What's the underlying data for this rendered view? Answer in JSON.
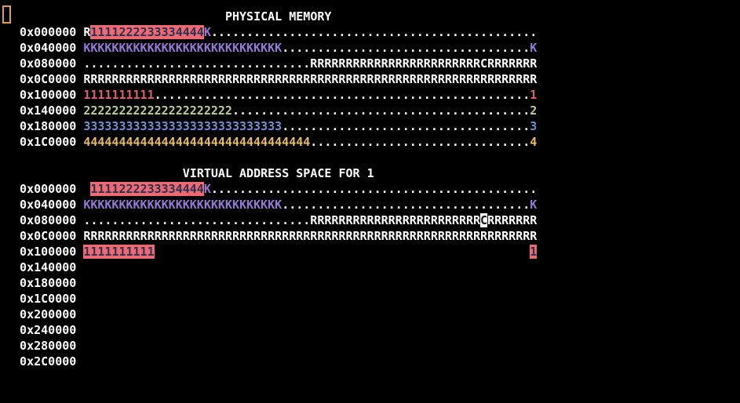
{
  "palette": {
    "background": "#000000",
    "default": "#ffffff",
    "kernel": "#9678d7",
    "proc1": "#e0606a",
    "proc2": "#bacf8c",
    "proc3": "#7092d8",
    "proc4": "#e8bc66",
    "hl_bg": "#ee6971",
    "hl_fg": "#283352",
    "console_bg": "#ffffff",
    "console_fg": "#141420",
    "cursor_border": "#d9a052"
  },
  "cursor": {
    "visible": true
  },
  "sections": [
    {
      "id": "physical-memory",
      "title": "PHYSICAL MEMORY",
      "rows": [
        {
          "addr": "0x000000",
          "segments": [
            {
              "text": "R",
              "fg": "default"
            },
            {
              "text": "1111222233334444",
              "fg": "hl_fg",
              "bg": "hl_bg"
            },
            {
              "text": "K",
              "fg": "kernel"
            },
            {
              "text": "..............................................",
              "fg": "default"
            }
          ]
        },
        {
          "addr": "0x040000",
          "segments": [
            {
              "text": "KKKKKKKKKKKKKKKKKKKKKKKKKKKK",
              "fg": "kernel"
            },
            {
              "text": "...................................",
              "fg": "default"
            },
            {
              "text": "K",
              "fg": "kernel"
            }
          ]
        },
        {
          "addr": "0x080000",
          "segments": [
            {
              "text": "................................RRRRRRRRRRRRRRRRRRRRRRRRCRRRRRRR",
              "fg": "default"
            }
          ]
        },
        {
          "addr": "0x0C0000",
          "segments": [
            {
              "text": "RRRRRRRRRRRRRRRRRRRRRRRRRRRRRRRRRRRRRRRRRRRRRRRRRRRRRRRRRRRRRRRR",
              "fg": "default"
            }
          ]
        },
        {
          "addr": "0x100000",
          "segments": [
            {
              "text": "1111111111",
              "fg": "proc1"
            },
            {
              "text": ".....................................................",
              "fg": "default"
            },
            {
              "text": "1",
              "fg": "proc1"
            }
          ]
        },
        {
          "addr": "0x140000",
          "segments": [
            {
              "text": "222222222222222222222",
              "fg": "proc2"
            },
            {
              "text": "..........................................",
              "fg": "default"
            },
            {
              "text": "2",
              "fg": "proc2"
            }
          ]
        },
        {
          "addr": "0x180000",
          "segments": [
            {
              "text": "3333333333333333333333333333",
              "fg": "proc3"
            },
            {
              "text": "...................................",
              "fg": "default"
            },
            {
              "text": "3",
              "fg": "proc3"
            }
          ]
        },
        {
          "addr": "0x1C0000",
          "segments": [
            {
              "text": "44444444444444444444444444444444",
              "fg": "proc4"
            },
            {
              "text": "...............................",
              "fg": "default"
            },
            {
              "text": "4",
              "fg": "proc4"
            }
          ]
        }
      ]
    },
    {
      "id": "virtual-address-space-1",
      "title": "VIRTUAL ADDRESS SPACE FOR 1",
      "rows": [
        {
          "addr": "0x000000",
          "segments": [
            {
              "text": " ",
              "fg": "default"
            },
            {
              "text": "1111222233334444",
              "fg": "hl_fg",
              "bg": "hl_bg"
            },
            {
              "text": "K",
              "fg": "kernel"
            },
            {
              "text": "..............................................",
              "fg": "default"
            }
          ]
        },
        {
          "addr": "0x040000",
          "segments": [
            {
              "text": "KKKKKKKKKKKKKKKKKKKKKKKKKKKK",
              "fg": "kernel"
            },
            {
              "text": "...................................",
              "fg": "default"
            },
            {
              "text": "K",
              "fg": "kernel"
            }
          ]
        },
        {
          "addr": "0x080000",
          "segments": [
            {
              "text": "................................RRRRRRRRRRRRRRRRRRRRRRRR",
              "fg": "default"
            },
            {
              "text": "C",
              "fg": "console_fg",
              "bg": "console_bg"
            },
            {
              "text": "RRRRRRR",
              "fg": "default"
            }
          ]
        },
        {
          "addr": "0x0C0000",
          "segments": [
            {
              "text": "RRRRRRRRRRRRRRRRRRRRRRRRRRRRRRRRRRRRRRRRRRRRRRRRRRRRRRRRRRRRRRRR",
              "fg": "default"
            }
          ]
        },
        {
          "addr": "0x100000",
          "segments": [
            {
              "text": "1111111111",
              "fg": "hl_fg",
              "bg": "hl_bg"
            },
            {
              "text": "                                                     ",
              "fg": "default"
            },
            {
              "text": "1",
              "fg": "hl_fg",
              "bg": "hl_bg"
            }
          ]
        },
        {
          "addr": "0x140000",
          "segments": []
        },
        {
          "addr": "0x180000",
          "segments": []
        },
        {
          "addr": "0x1C0000",
          "segments": []
        },
        {
          "addr": "0x200000",
          "segments": []
        },
        {
          "addr": "0x240000",
          "segments": []
        },
        {
          "addr": "0x280000",
          "segments": []
        },
        {
          "addr": "0x2C0000",
          "segments": []
        }
      ]
    }
  ]
}
